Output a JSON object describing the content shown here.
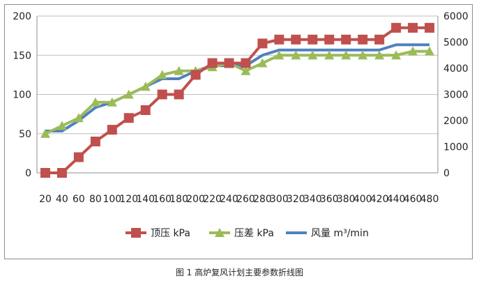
{
  "caption": "图 1 高炉复风计划主要参数折线图",
  "chart_data": {
    "type": "line",
    "categories": [
      "20",
      "40",
      "60",
      "80",
      "100",
      "120",
      "140",
      "160",
      "180",
      "200",
      "220",
      "240",
      "260",
      "280",
      "300",
      "320",
      "340",
      "360",
      "380",
      "400",
      "420",
      "440",
      "460",
      "480"
    ],
    "y_left": {
      "min": 0,
      "max": 200,
      "ticks": [
        0,
        50,
        100,
        150,
        200
      ]
    },
    "y_right": {
      "min": 0,
      "max": 6000,
      "ticks": [
        0,
        1000,
        2000,
        3000,
        4000,
        5000,
        6000
      ]
    },
    "grid": true,
    "legend_position": "bottom",
    "series": [
      {
        "name": "顶压 kPa",
        "axis": "left",
        "color": "#c0504d",
        "marker": "square",
        "values": [
          0,
          0,
          20,
          40,
          55,
          70,
          80,
          100,
          100,
          125,
          140,
          140,
          140,
          165,
          170,
          170,
          170,
          170,
          170,
          170,
          170,
          185,
          185,
          185
        ]
      },
      {
        "name": "压差 kPa",
        "axis": "left",
        "color": "#9bbb59",
        "marker": "triangle",
        "values": [
          50,
          60,
          70,
          90,
          90,
          100,
          110,
          125,
          130,
          130,
          135,
          140,
          130,
          140,
          150,
          150,
          150,
          150,
          150,
          150,
          150,
          150,
          155,
          155
        ]
      },
      {
        "name": "风量 m³/min",
        "axis": "right",
        "color": "#4f81bd",
        "marker": "none",
        "values": [
          1600,
          1600,
          2000,
          2500,
          2700,
          3000,
          3300,
          3600,
          3600,
          3900,
          4100,
          4100,
          4100,
          4500,
          4700,
          4700,
          4700,
          4700,
          4700,
          4700,
          4700,
          4900,
          4900,
          4900
        ]
      }
    ]
  }
}
